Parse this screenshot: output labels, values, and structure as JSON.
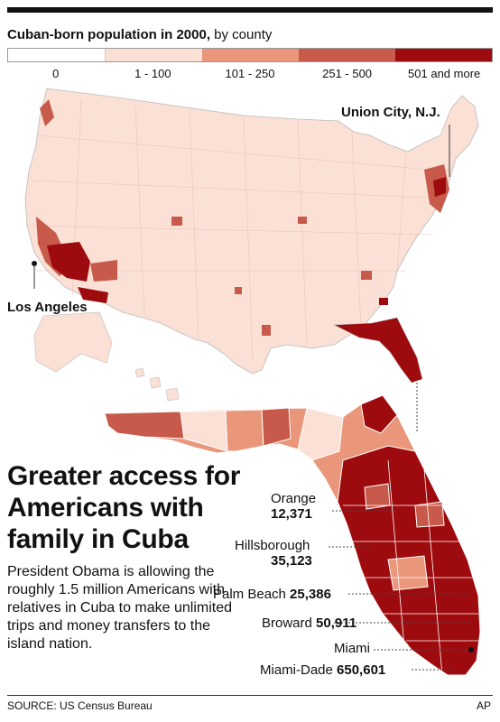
{
  "legend": {
    "title_bold": "Cuban-born population in 2000,",
    "title_rest": " by county",
    "bins": [
      {
        "label": "0",
        "color": "#ffffff"
      },
      {
        "label": "1 - 100",
        "color": "#fbe0d6"
      },
      {
        "label": "101 - 250",
        "color": "#e9967a"
      },
      {
        "label": "251 - 500",
        "color": "#c75a4a"
      },
      {
        "label": "501 and more",
        "color": "#9e0b0f"
      }
    ]
  },
  "map_labels": {
    "union_city": "Union City, N.J.",
    "los_angeles": "Los Angeles"
  },
  "headline": "Greater access for Americans with family in Cuba",
  "body": "President Obama is allowing the roughly 1.5 million Americans with relatives in Cuba to make unlimited trips and money transfers to the island nation.",
  "florida_callouts": [
    {
      "name": "Orange",
      "value": "12,371"
    },
    {
      "name": "Hillsborough",
      "value": "35,123"
    },
    {
      "name": "Palm Beach",
      "value": "25,386"
    },
    {
      "name": "Broward",
      "value": "50,911"
    },
    {
      "name": "Miami",
      "value": ""
    },
    {
      "name": "Miami-Dade",
      "value": "650,601"
    }
  ],
  "source": "SOURCE: US Census Bureau",
  "credit": "AP"
}
